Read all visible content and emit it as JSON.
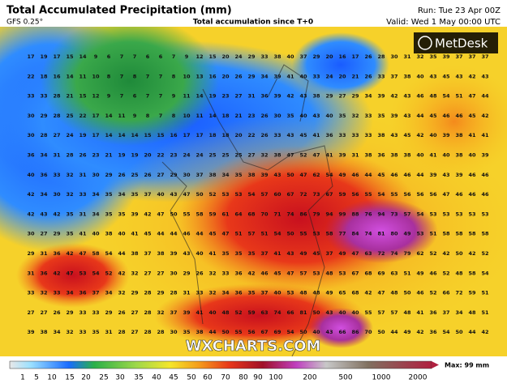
{
  "header": {
    "title": "Total Accumulated Precipitation (mm)",
    "model": "GFS 0.25°",
    "subtitle": "Total accumulation since T+0",
    "run": "Run: Tue 23 Apr 00Z",
    "valid": "Valid: Wed 1 May 00:00 UTC"
  },
  "logo": "MetDesk",
  "watermark": "WXCHARTS.COM",
  "legend": {
    "labels": [
      "1",
      "5",
      "10",
      "15",
      "20",
      "25",
      "30",
      "35",
      "40",
      "45",
      "50",
      "60",
      "70",
      "80",
      "90",
      "100",
      "200",
      "500",
      "1000",
      "2000"
    ],
    "max": "Max: 99 mm"
  },
  "grid": {
    "rows": [
      [
        17,
        19,
        17,
        15,
        14,
        9,
        6,
        7,
        7,
        6,
        6,
        7,
        9,
        12,
        15,
        20,
        24,
        29,
        33,
        38,
        40,
        37,
        29,
        20,
        16,
        17,
        26,
        28,
        30,
        31,
        32,
        35,
        39,
        37,
        37,
        37
      ],
      [
        22,
        18,
        16,
        14,
        11,
        10,
        8,
        7,
        8,
        7,
        7,
        8,
        10,
        13,
        16,
        20,
        26,
        29,
        34,
        39,
        41,
        40,
        33,
        24,
        20,
        21,
        26,
        33,
        37,
        38,
        40,
        43,
        45,
        43,
        42,
        43
      ],
      [
        33,
        33,
        28,
        21,
        15,
        12,
        9,
        7,
        6,
        7,
        7,
        9,
        11,
        14,
        19,
        23,
        27,
        31,
        36,
        39,
        42,
        43,
        38,
        29,
        27,
        29,
        34,
        39,
        42,
        43,
        46,
        48,
        54,
        51,
        47,
        44
      ],
      [
        30,
        29,
        28,
        25,
        22,
        17,
        14,
        11,
        9,
        8,
        7,
        8,
        10,
        11,
        14,
        18,
        21,
        23,
        26,
        30,
        35,
        40,
        43,
        40,
        35,
        32,
        33,
        35,
        39,
        43,
        44,
        45,
        46,
        46,
        45,
        42
      ],
      [
        30,
        28,
        27,
        24,
        19,
        17,
        14,
        14,
        14,
        15,
        15,
        16,
        17,
        17,
        18,
        18,
        20,
        22,
        26,
        33,
        43,
        45,
        41,
        36,
        33,
        33,
        33,
        38,
        43,
        45,
        42,
        40,
        39,
        38,
        41,
        41
      ],
      [
        36,
        34,
        31,
        28,
        26,
        23,
        21,
        19,
        19,
        20,
        22,
        23,
        24,
        24,
        25,
        25,
        25,
        27,
        32,
        38,
        47,
        52,
        47,
        41,
        39,
        31,
        38,
        36,
        38,
        38,
        40,
        41,
        40,
        38,
        40,
        39
      ],
      [
        40,
        36,
        33,
        32,
        31,
        30,
        29,
        26,
        25,
        26,
        27,
        29,
        30,
        37,
        38,
        34,
        35,
        38,
        39,
        43,
        50,
        47,
        62,
        54,
        49,
        46,
        44,
        45,
        46,
        46,
        44,
        39,
        43,
        39,
        46,
        46
      ],
      [
        42,
        34,
        30,
        32,
        33,
        34,
        35,
        34,
        35,
        37,
        40,
        43,
        47,
        50,
        52,
        53,
        53,
        54,
        57,
        60,
        67,
        72,
        73,
        67,
        59,
        56,
        55,
        54,
        55,
        56,
        56,
        56,
        47,
        46,
        46,
        46
      ],
      [
        42,
        43,
        42,
        35,
        31,
        34,
        35,
        35,
        39,
        42,
        47,
        50,
        55,
        58,
        59,
        61,
        64,
        68,
        70,
        71,
        74,
        86,
        79,
        94,
        99,
        88,
        76,
        94,
        73,
        57,
        54,
        53,
        53,
        53,
        53,
        53
      ],
      [
        30,
        27,
        29,
        35,
        41,
        40,
        38,
        40,
        41,
        45,
        44,
        44,
        46,
        44,
        45,
        47,
        51,
        57,
        51,
        54,
        50,
        55,
        53,
        58,
        77,
        84,
        74,
        81,
        80,
        49,
        53,
        51,
        58,
        58,
        58,
        58
      ],
      [
        29,
        31,
        36,
        42,
        47,
        58,
        54,
        44,
        38,
        37,
        38,
        39,
        43,
        40,
        41,
        35,
        35,
        35,
        37,
        41,
        43,
        49,
        45,
        37,
        49,
        47,
        63,
        72,
        74,
        79,
        62,
        52,
        42,
        50,
        42,
        52
      ],
      [
        31,
        36,
        42,
        47,
        53,
        54,
        52,
        42,
        32,
        27,
        27,
        30,
        29,
        26,
        32,
        33,
        36,
        42,
        46,
        45,
        47,
        57,
        53,
        48,
        53,
        67,
        68,
        69,
        63,
        51,
        49,
        46,
        52,
        48,
        58,
        54
      ],
      [
        33,
        32,
        33,
        34,
        36,
        37,
        34,
        32,
        29,
        28,
        29,
        28,
        31,
        33,
        32,
        34,
        36,
        35,
        37,
        40,
        53,
        48,
        48,
        49,
        65,
        68,
        42,
        47,
        48,
        50,
        46,
        52,
        66,
        72,
        59,
        51
      ],
      [
        27,
        27,
        26,
        29,
        33,
        33,
        29,
        26,
        27,
        28,
        32,
        37,
        39,
        41,
        40,
        48,
        52,
        59,
        63,
        74,
        66,
        81,
        50,
        43,
        40,
        40,
        55,
        57,
        57,
        48,
        41,
        36,
        37,
        34,
        48,
        51
      ],
      [
        39,
        38,
        34,
        32,
        33,
        35,
        31,
        28,
        27,
        28,
        28,
        30,
        35,
        38,
        44,
        50,
        55,
        56,
        67,
        69,
        54,
        50,
        40,
        43,
        66,
        86,
        70,
        50,
        44,
        49,
        42,
        36,
        54,
        50,
        44,
        42
      ]
    ]
  }
}
